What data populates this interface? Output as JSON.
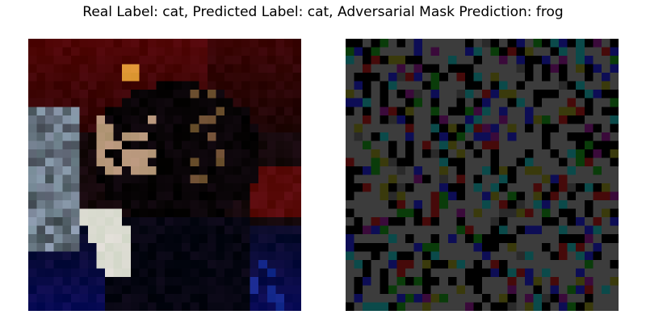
{
  "figure": {
    "title": "Real Label: cat, Predicted Label: cat, Adversarial Mask Prediction: frog"
  },
  "images": [
    {
      "name": "original-image",
      "grid": 32,
      "description_colors": {
        "background_top": "#4a0000",
        "background_bottom": "#0a0a30",
        "highlight": "#e8e2d4"
      }
    },
    {
      "name": "adversarial-mask",
      "grid": 32,
      "palette": [
        "#3c3c3c",
        "#000000",
        "#0d0d55",
        "#0b4a4a",
        "#3a3a0c",
        "#460a0a",
        "#0a3c0a",
        "#3a0a3a",
        "#2a2a2a"
      ]
    }
  ]
}
